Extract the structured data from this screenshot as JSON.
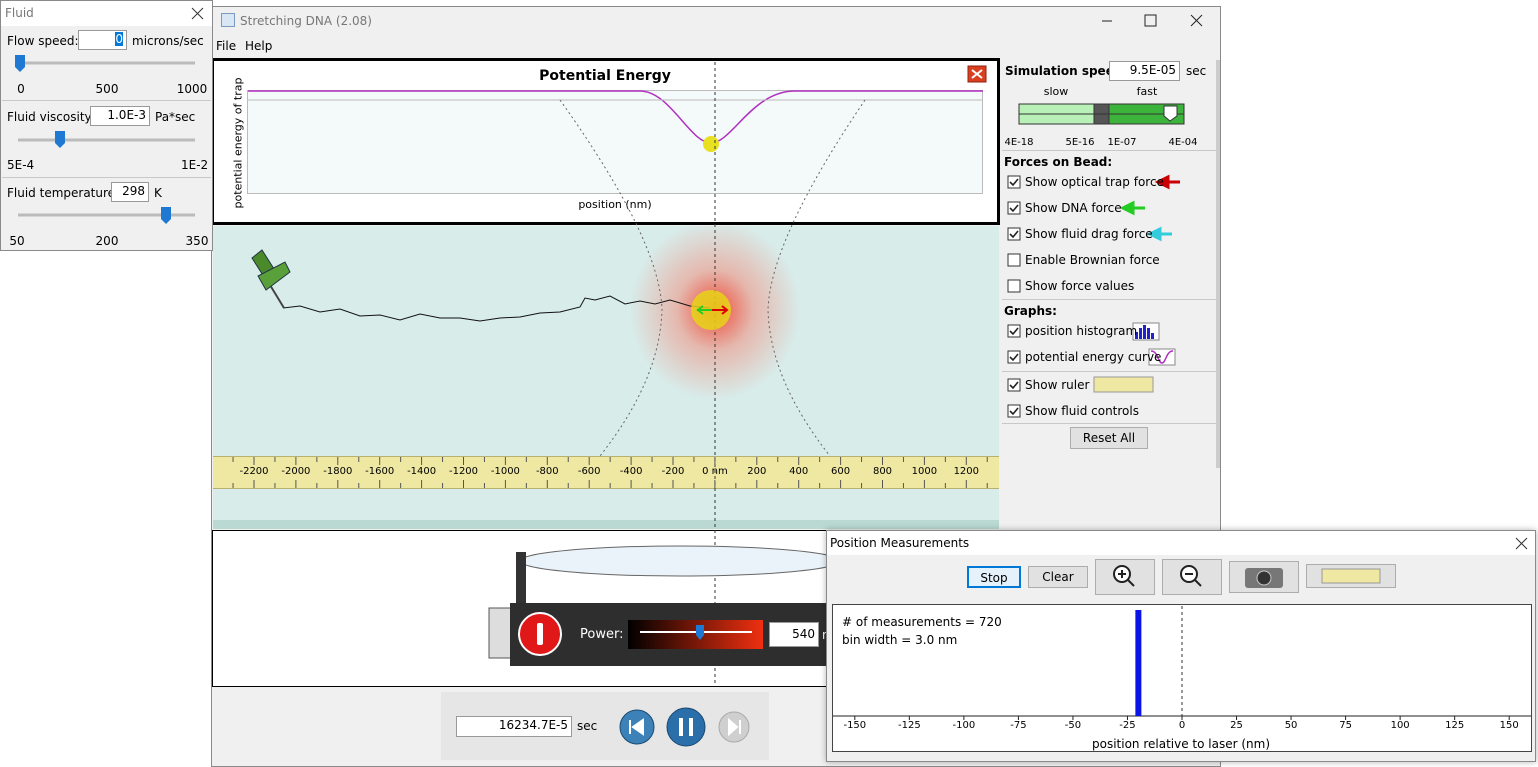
{
  "fluid_window": {
    "title": "Fluid",
    "flow_speed": {
      "label": "Flow speed:",
      "value": "0",
      "unit": "microns/sec",
      "scale": [
        "0",
        "500",
        "1000"
      ]
    },
    "viscosity": {
      "label": "Fluid viscosity:",
      "value": "1.0E-3",
      "unit": "Pa*sec",
      "scale": [
        "5E-4",
        "1E-2"
      ]
    },
    "temperature": {
      "label": "Fluid temperature:",
      "value": "298",
      "unit": "K",
      "scale": [
        "50",
        "200",
        "350"
      ]
    }
  },
  "main_window": {
    "title": "Stretching DNA (2.08)",
    "menu": [
      "File",
      "Help"
    ],
    "potential_energy": {
      "title": "Potential Energy",
      "y_label": "potential energy of trap",
      "x_label": "position (nm)"
    },
    "ruler": [
      "-2200",
      "-2000",
      "-1800",
      "-1600",
      "-1400",
      "-1200",
      "-1000",
      "-800",
      "-600",
      "-400",
      "-200",
      "0 nm",
      "200",
      "400",
      "600",
      "800",
      "1000",
      "1200"
    ],
    "laser": {
      "power_label": "Power:",
      "power_value": "540",
      "power_unit": "n"
    },
    "clock": {
      "time": "16234.7E-5",
      "unit": "sec"
    }
  },
  "control_panel": {
    "speed": {
      "label": "Simulation speed:",
      "value": "9.5E-05",
      "unit": "sec",
      "slow": "slow",
      "fast": "fast",
      "scale": [
        "4E-18",
        "5E-16",
        "1E-07",
        "4E-04"
      ]
    },
    "forces": {
      "heading": "Forces on Bead:",
      "items": [
        {
          "label": "Show optical trap force",
          "checked": true
        },
        {
          "label": "Show DNA force",
          "checked": true
        },
        {
          "label": "Show fluid drag force",
          "checked": true
        },
        {
          "label": "Enable Brownian force",
          "checked": false
        },
        {
          "label": "Show force values",
          "checked": false
        }
      ]
    },
    "graphs": {
      "heading": "Graphs:",
      "items": [
        {
          "label": "position histogram",
          "checked": true
        },
        {
          "label": "potential energy curve",
          "checked": true
        }
      ]
    },
    "options": {
      "items": [
        {
          "label": "Show ruler",
          "checked": true
        },
        {
          "label": "Show fluid controls",
          "checked": true
        }
      ]
    },
    "reset": "Reset All"
  },
  "measurements_window": {
    "title": "Position Measurements",
    "buttons": [
      "Stop",
      "Clear"
    ],
    "stats": [
      "# of measurements = 720",
      "bin width = 3.0 nm"
    ],
    "histogram": {
      "xlim": [
        -160,
        160
      ],
      "xticks": [
        -150,
        -125,
        -100,
        -75,
        -50,
        -25,
        0,
        25,
        50,
        75,
        100,
        125,
        150
      ],
      "bar": -20,
      "x_label": "position relative to laser (nm)"
    }
  }
}
